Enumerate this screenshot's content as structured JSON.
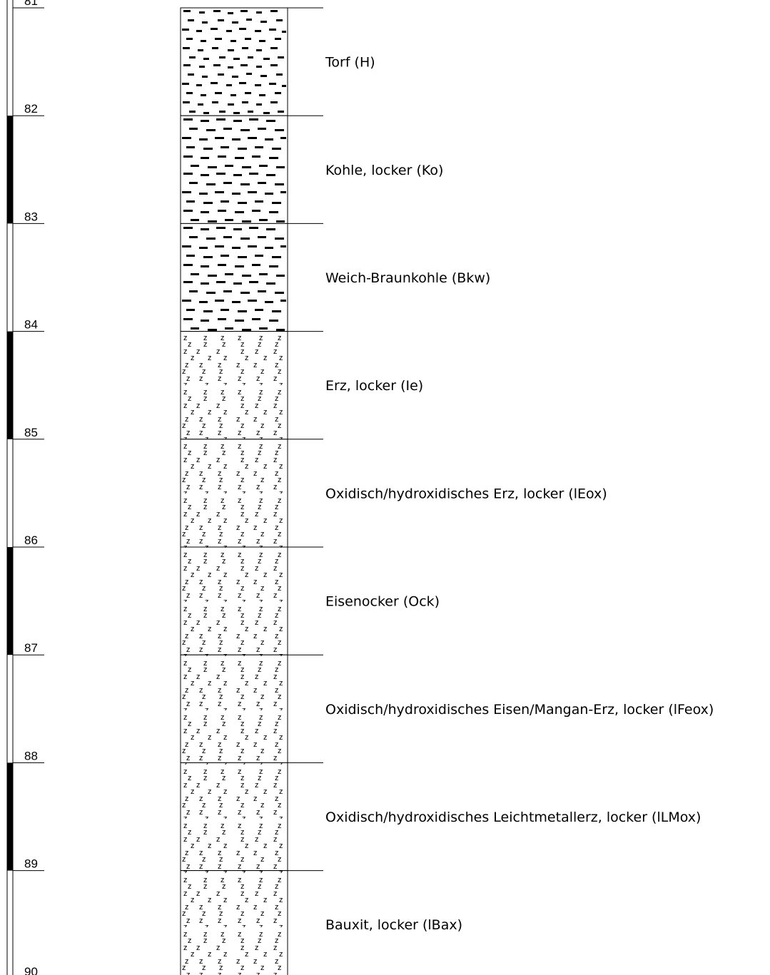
{
  "depth_scale": {
    "ticks": [
      "81",
      "82",
      "83",
      "84",
      "85",
      "86",
      "87",
      "88",
      "89",
      "90"
    ]
  },
  "layers": [
    {
      "top": 81,
      "bottom": 82,
      "pattern": "peat-dash",
      "label": "Torf (H)"
    },
    {
      "top": 82,
      "bottom": 83,
      "pattern": "coal-dash",
      "label": "Kohle, locker (Ko)"
    },
    {
      "top": 83,
      "bottom": 84,
      "pattern": "coal-dash",
      "label": "Weich-Braunkohle (Bkw)"
    },
    {
      "top": 84,
      "bottom": 85,
      "pattern": "ore-z",
      "label": "Erz, locker (Ie)"
    },
    {
      "top": 85,
      "bottom": 86,
      "pattern": "ore-z",
      "label": "Oxidisch/hydroxidisches Erz, locker (lEox)"
    },
    {
      "top": 86,
      "bottom": 87,
      "pattern": "ore-z",
      "label": "Eisenocker (Ock)"
    },
    {
      "top": 87,
      "bottom": 88,
      "pattern": "ore-z",
      "label": "Oxidisch/hydroxidisches Eisen/Mangan-Erz, locker (lFeox)"
    },
    {
      "top": 88,
      "bottom": 89,
      "pattern": "ore-z",
      "label": "Oxidisch/hydroxidisches Leichtmetallerz, locker (lLMox)"
    },
    {
      "top": 89,
      "bottom": 90,
      "pattern": "ore-z",
      "label": "Bauxit, locker (lBax)"
    }
  ],
  "pattern_glyph": "z",
  "colors": {
    "line": "#000000",
    "background": "#ffffff"
  }
}
